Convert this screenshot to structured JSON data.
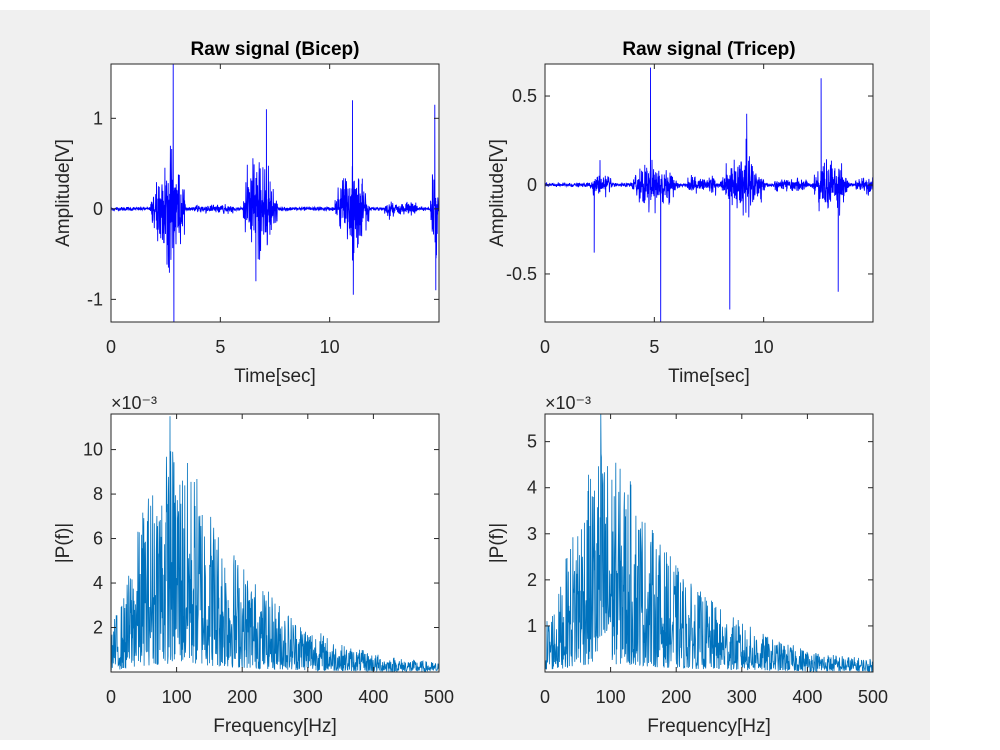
{
  "colors": {
    "figure_bg": "#f0f0f0",
    "axes_bg": "#ffffff",
    "axes_edge": "#262626",
    "signal_line": "#0000ff",
    "spectrum_line": "#0072bd"
  },
  "chart_data": [
    {
      "id": "raw-bicep",
      "type": "line",
      "title": "Raw signal (Bicep)",
      "xlabel": "Time[sec]",
      "ylabel": "Amplitude[V]",
      "xlim": [
        0,
        15
      ],
      "ylim": [
        -1.25,
        1.6
      ],
      "xticks": [
        0,
        5,
        10
      ],
      "yticks": [
        -1,
        0,
        1
      ],
      "exponent_label": "",
      "grid": false,
      "series": [
        {
          "color": "#0000ff",
          "signal": {
            "duration": 15,
            "baseline_noise": 0.01,
            "bursts": [
              {
                "start": 1.8,
                "end": 3.6,
                "amplitude": 0.55,
                "peak": 1.6,
                "trough": -1.25
              },
              {
                "start": 6.0,
                "end": 7.8,
                "amplitude": 0.5,
                "peak": 1.1,
                "trough": -0.8
              },
              {
                "start": 10.2,
                "end": 12.0,
                "amplitude": 0.4,
                "peak": 1.2,
                "trough": -0.95
              },
              {
                "start": 14.6,
                "end": 15.0,
                "amplitude": 0.5,
                "peak": 1.15,
                "trough": -0.9
              }
            ],
            "low_bursts": [
              {
                "start": 3.8,
                "end": 5.6,
                "amplitude": 0.04
              },
              {
                "start": 12.5,
                "end": 14.0,
                "amplitude": 0.06
              }
            ]
          }
        }
      ]
    },
    {
      "id": "raw-tricep",
      "type": "line",
      "title": "Raw signal (Tricep)",
      "xlabel": "Time[sec]",
      "ylabel": "Amplitude[V]",
      "xlim": [
        0,
        15
      ],
      "ylim": [
        -0.77,
        0.68
      ],
      "xticks": [
        0,
        5,
        10
      ],
      "yticks": [
        -0.5,
        0,
        0.5
      ],
      "exponent_label": "",
      "grid": false,
      "series": [
        {
          "color": "#0000ff",
          "signal": {
            "duration": 15,
            "baseline_noise": 0.005,
            "bursts": [
              {
                "start": 2.0,
                "end": 3.3,
                "amplitude": 0.05,
                "peak": 0.14,
                "trough": -0.38
              },
              {
                "start": 3.9,
                "end": 6.3,
                "amplitude": 0.12,
                "peak": 0.66,
                "trough": -0.77
              },
              {
                "start": 8.0,
                "end": 10.3,
                "amplitude": 0.14,
                "peak": 0.4,
                "trough": -0.7
              },
              {
                "start": 12.2,
                "end": 14.1,
                "amplitude": 0.13,
                "peak": 0.6,
                "trough": -0.6
              }
            ],
            "low_bursts": [
              {
                "start": 6.5,
                "end": 7.8,
                "amplitude": 0.04
              },
              {
                "start": 10.5,
                "end": 12.0,
                "amplitude": 0.03
              },
              {
                "start": 14.2,
                "end": 15.0,
                "amplitude": 0.04
              }
            ]
          }
        }
      ]
    },
    {
      "id": "spectrum-bicep",
      "type": "line",
      "title": "",
      "xlabel": "Frequency[Hz]",
      "ylabel": "|P(f)|",
      "xlim": [
        0,
        500
      ],
      "ylim": [
        0,
        11.6
      ],
      "xticks": [
        0,
        100,
        200,
        300,
        400,
        500
      ],
      "yticks": [
        2,
        4,
        6,
        8,
        10
      ],
      "exponent_label": "×10⁻³",
      "y_scale_factor": 0.001,
      "grid": false,
      "series": [
        {
          "color": "#0072bd",
          "spectrum": {
            "resolution_hz": 0.5,
            "peak_frequency_hz": 90,
            "peak_envelope": 7.5,
            "max_value": 11.5,
            "envelope_points": [
              [
                0,
                1.5
              ],
              [
                20,
                2.5
              ],
              [
                50,
                5.5
              ],
              [
                90,
                7.5
              ],
              [
                130,
                6.5
              ],
              [
                170,
                4.5
              ],
              [
                220,
                3.0
              ],
              [
                280,
                1.8
              ],
              [
                350,
                0.9
              ],
              [
                420,
                0.5
              ],
              [
                500,
                0.3
              ]
            ]
          }
        }
      ]
    },
    {
      "id": "spectrum-tricep",
      "type": "line",
      "title": "",
      "xlabel": "Frequency[Hz]",
      "ylabel": "|P(f)|",
      "xlim": [
        0,
        500
      ],
      "ylim": [
        0,
        5.6
      ],
      "xticks": [
        0,
        100,
        200,
        300,
        400,
        500
      ],
      "yticks": [
        1,
        2,
        3,
        4,
        5
      ],
      "exponent_label": "×10⁻³",
      "y_scale_factor": 0.001,
      "grid": false,
      "series": [
        {
          "color": "#0072bd",
          "spectrum": {
            "resolution_hz": 0.5,
            "peak_frequency_hz": 85,
            "peak_envelope": 3.6,
            "max_value": 5.6,
            "envelope_points": [
              [
                0,
                0.8
              ],
              [
                20,
                1.2
              ],
              [
                50,
                2.6
              ],
              [
                85,
                3.6
              ],
              [
                130,
                3.0
              ],
              [
                170,
                2.1
              ],
              [
                220,
                1.4
              ],
              [
                280,
                0.9
              ],
              [
                350,
                0.5
              ],
              [
                420,
                0.3
              ],
              [
                500,
                0.2
              ]
            ]
          }
        }
      ]
    }
  ]
}
